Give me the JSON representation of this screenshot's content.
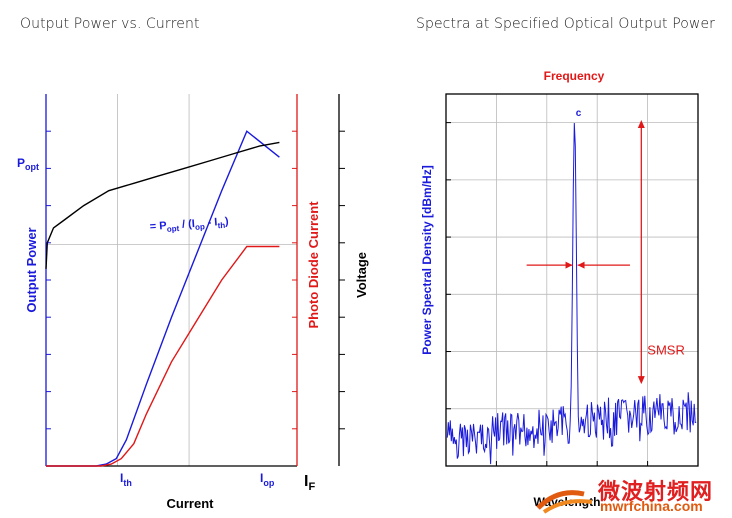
{
  "titles": {
    "left": "Output Power vs. Current",
    "right": "Spectra at Specified Optical Output Power"
  },
  "colors": {
    "blue": "#1a1adc",
    "red": "#e01818",
    "black": "#000000",
    "grid": "#bbbbbb",
    "watermark_red": "#e02020",
    "watermark_orange": "#e05a10"
  },
  "chart_data": [
    {
      "type": "line",
      "title": "Output Power vs. Current",
      "xlabel": "Current",
      "ylabel_left": "Output Power",
      "ylabel_right": "Photo Diode Current",
      "ylabel_far_right": "Voltage",
      "x_tick_labels": [
        {
          "main": "I",
          "sub": "th",
          "x": 0.25
        },
        {
          "main": "I",
          "sub": "op",
          "x": 0.9
        }
      ],
      "x_extra_label": {
        "main": "I",
        "sub": "F"
      },
      "y_tick_labels": [
        {
          "main": "P",
          "sub": "opt",
          "y": 0.82
        }
      ],
      "annotation": {
        "prefix": "= P",
        "s1": "opt",
        "mid": " / (I",
        "s2": "op",
        "dash": " - I",
        "s3": "th",
        "suffix": ")"
      },
      "xlim": [
        0,
        1
      ],
      "ylim": [
        0,
        1
      ],
      "grid": true,
      "series": [
        {
          "color": "#1a1adc",
          "points": [
            [
              0,
              0
            ],
            [
              0.2,
              0
            ],
            [
              0.24,
              0.005
            ],
            [
              0.28,
              0.02
            ],
            [
              0.32,
              0.07
            ],
            [
              0.4,
              0.22
            ],
            [
              0.5,
              0.4
            ],
            [
              0.6,
              0.57
            ],
            [
              0.7,
              0.74
            ],
            [
              0.8,
              0.9
            ],
            [
              0.93,
              0.83
            ]
          ]
        },
        {
          "color": "#e01818",
          "points": [
            [
              0,
              0
            ],
            [
              0.22,
              0
            ],
            [
              0.26,
              0.005
            ],
            [
              0.3,
              0.02
            ],
            [
              0.35,
              0.06
            ],
            [
              0.4,
              0.14
            ],
            [
              0.5,
              0.28
            ],
            [
              0.6,
              0.39
            ],
            [
              0.7,
              0.5
            ],
            [
              0.8,
              0.59
            ],
            [
              0.93,
              0.59
            ]
          ]
        },
        {
          "color": "#000000",
          "points": [
            [
              0,
              0.53
            ],
            [
              0.005,
              0.6
            ],
            [
              0.03,
              0.64
            ],
            [
              0.07,
              0.66
            ],
            [
              0.15,
              0.7
            ],
            [
              0.25,
              0.74
            ],
            [
              0.35,
              0.76
            ],
            [
              0.45,
              0.78
            ],
            [
              0.55,
              0.8
            ],
            [
              0.65,
              0.82
            ],
            [
              0.75,
              0.84
            ],
            [
              0.85,
              0.86
            ],
            [
              0.93,
              0.87
            ]
          ]
        }
      ]
    },
    {
      "type": "line",
      "title": "Frequency",
      "xlabel": "Wavelength",
      "ylabel": "Power Spectral Density [dBm/Hz]",
      "peak_label": "c",
      "annotation": "SMSR",
      "xlim": [
        0,
        1
      ],
      "ylim": [
        0,
        1
      ],
      "grid": true,
      "peak": {
        "x": 0.51,
        "y": 0.93
      },
      "noise_floor": [
        0.13,
        0.17
      ],
      "noise_floor_right": [
        0.18,
        0.2
      ],
      "linewidth_y": 0.54,
      "smsr_range": [
        0.93,
        0.22
      ]
    }
  ],
  "watermark": {
    "chinese": "微波射频网",
    "url": "mwrfchina.com"
  }
}
